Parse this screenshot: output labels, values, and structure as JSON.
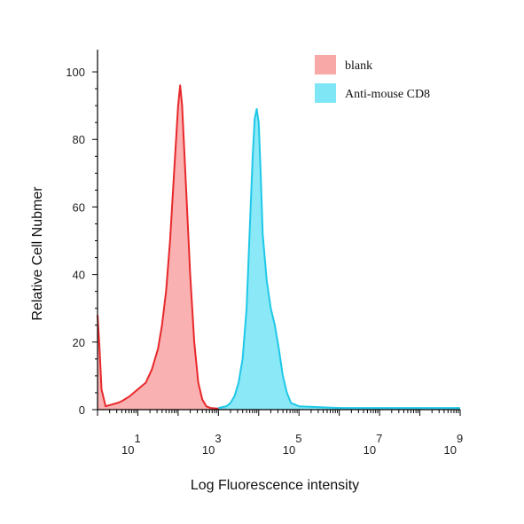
{
  "chart_data": {
    "type": "area",
    "title": "",
    "xlabel": "Log Fluorescence intensity",
    "ylabel": "Relative Cell Nubmer",
    "xscale": "log",
    "xlim_log10": [
      0,
      9
    ],
    "ylim": [
      0,
      105
    ],
    "xticks": [
      {
        "base": "10",
        "exp": "1",
        "log10": 1
      },
      {
        "base": "10",
        "exp": "3",
        "log10": 3
      },
      {
        "base": "10",
        "exp": "5",
        "log10": 5
      },
      {
        "base": "10",
        "exp": "7",
        "log10": 7
      },
      {
        "base": "10",
        "exp": "9",
        "log10": 9
      }
    ],
    "yticks": [
      "0",
      "20",
      "40",
      "60",
      "80",
      "100"
    ],
    "ytick_values": [
      0,
      20,
      40,
      60,
      80,
      100
    ],
    "grid": false,
    "legend_position": "top-right",
    "series": [
      {
        "name": "blank",
        "fill": "#f9a8a8",
        "stroke": "#e8282b",
        "points_log10_y": [
          [
            0.0,
            28
          ],
          [
            0.05,
            18
          ],
          [
            0.1,
            6
          ],
          [
            0.2,
            1
          ],
          [
            0.35,
            1.5
          ],
          [
            0.5,
            2
          ],
          [
            0.6,
            2.5
          ],
          [
            0.8,
            4
          ],
          [
            1.0,
            6
          ],
          [
            1.2,
            8
          ],
          [
            1.35,
            12
          ],
          [
            1.5,
            18
          ],
          [
            1.6,
            25
          ],
          [
            1.7,
            35
          ],
          [
            1.8,
            50
          ],
          [
            1.9,
            70
          ],
          [
            2.0,
            90
          ],
          [
            2.05,
            96
          ],
          [
            2.1,
            90
          ],
          [
            2.2,
            65
          ],
          [
            2.3,
            40
          ],
          [
            2.4,
            20
          ],
          [
            2.5,
            8
          ],
          [
            2.6,
            3
          ],
          [
            2.7,
            1
          ],
          [
            2.8,
            0.5
          ],
          [
            3.0,
            0.3
          ],
          [
            3.2,
            0.3
          ]
        ]
      },
      {
        "name": "Anti-mouse CD8",
        "fill": "#7ee6f5",
        "stroke": "#1ec8e8",
        "points_log10_y": [
          [
            3.0,
            0.5
          ],
          [
            3.2,
            1
          ],
          [
            3.3,
            2
          ],
          [
            3.4,
            4
          ],
          [
            3.5,
            8
          ],
          [
            3.6,
            15
          ],
          [
            3.7,
            30
          ],
          [
            3.75,
            45
          ],
          [
            3.8,
            60
          ],
          [
            3.85,
            75
          ],
          [
            3.9,
            86
          ],
          [
            3.95,
            89
          ],
          [
            4.0,
            85
          ],
          [
            4.05,
            70
          ],
          [
            4.1,
            52
          ],
          [
            4.2,
            38
          ],
          [
            4.3,
            30
          ],
          [
            4.4,
            25
          ],
          [
            4.5,
            18
          ],
          [
            4.6,
            10
          ],
          [
            4.7,
            5
          ],
          [
            4.8,
            2
          ],
          [
            5.0,
            1
          ],
          [
            6.0,
            0.5
          ],
          [
            9.0,
            0.5
          ]
        ]
      }
    ]
  }
}
